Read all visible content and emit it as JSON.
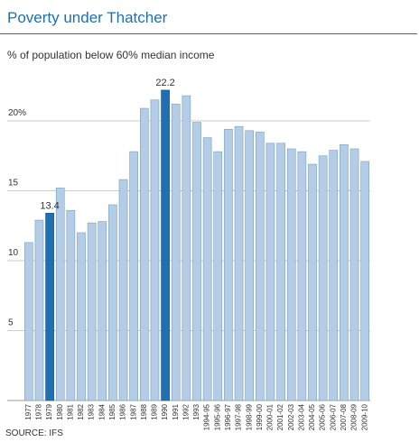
{
  "title": "Poverty under Thatcher",
  "subtitle": "% of population below 60% median income",
  "source": "SOURCE: IFS",
  "colors": {
    "bar": "#b3cde6",
    "bar_stroke": "#7a9fc4",
    "highlight": "#1f6fb2",
    "grid": "#cccccc",
    "title": "#1f6fb2"
  },
  "chart_data": {
    "type": "bar",
    "title": "Poverty under Thatcher",
    "ylabel": "% of population below 60% median income",
    "xlabel": "",
    "ylim": [
      0,
      23
    ],
    "grid": true,
    "y_ticks": [
      {
        "value": 5,
        "label": "5"
      },
      {
        "value": 10,
        "label": "10"
      },
      {
        "value": 15,
        "label": "15"
      },
      {
        "value": 20,
        "label": "20%"
      }
    ],
    "categories": [
      "1977",
      "1978",
      "1979",
      "1980",
      "1981",
      "1982",
      "1983",
      "1984",
      "1985",
      "1986",
      "1987",
      "1988",
      "1989",
      "1990",
      "1991",
      "1992",
      "1993",
      "1994-95",
      "1995-96",
      "1996-97",
      "1997-98",
      "1998-99",
      "1999-00",
      "2000-01",
      "2001-02",
      "2002-03",
      "2003-04",
      "2004-05",
      "2005-06",
      "2006-07",
      "2007-08",
      "2008-09",
      "2009-10"
    ],
    "values": [
      11.3,
      12.9,
      13.4,
      15.2,
      13.6,
      12.0,
      12.7,
      12.8,
      14.0,
      15.8,
      17.8,
      20.9,
      21.5,
      22.2,
      21.2,
      21.8,
      19.9,
      18.8,
      17.8,
      19.4,
      19.6,
      19.3,
      19.2,
      18.4,
      18.4,
      18.0,
      17.8,
      16.9,
      17.5,
      17.9,
      18.3,
      18.0,
      17.1
    ],
    "highlighted": [
      "1979",
      "1990"
    ],
    "data_labels": [
      {
        "category": "1979",
        "text": "13.4"
      },
      {
        "category": "1990",
        "text": "22.2"
      }
    ]
  }
}
